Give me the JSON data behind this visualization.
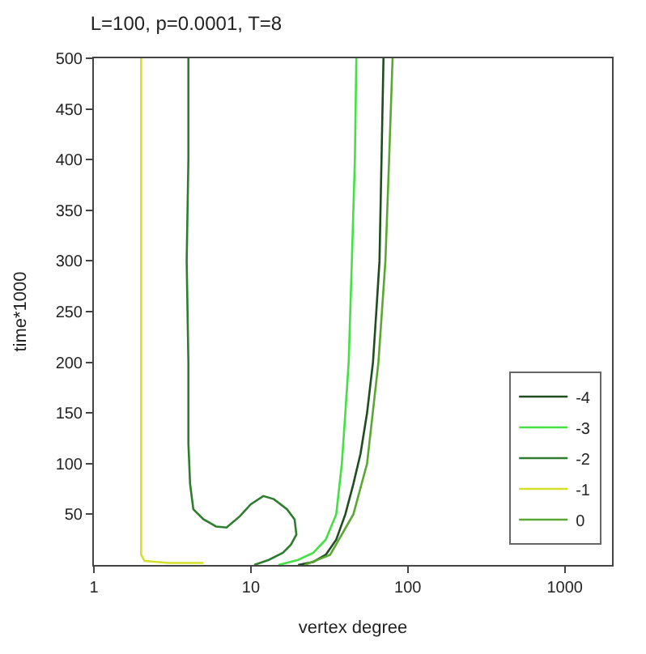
{
  "chart_data": {
    "type": "line",
    "title": "L=100, p=0.0001, T=8",
    "xlabel": "vertex degree",
    "ylabel": "time*1000",
    "log": "x",
    "xlim": [
      1,
      2000
    ],
    "xticks": [
      1,
      10,
      100,
      1000
    ],
    "ylim": [
      0,
      500
    ],
    "yticks": [
      50,
      100,
      150,
      200,
      250,
      300,
      350,
      400,
      450,
      500
    ],
    "legend": "bottom right",
    "marker": "none",
    "line_style": "solid",
    "series": [
      {
        "name": "-4",
        "color": "#1f4d1f",
        "x": [
          20,
          25,
          30,
          35,
          40,
          45,
          50,
          55,
          60,
          63,
          66,
          68,
          70
        ],
        "values": [
          0,
          3,
          10,
          25,
          50,
          80,
          110,
          150,
          200,
          250,
          300,
          400,
          500
        ]
      },
      {
        "name": "-3",
        "color": "#44e044",
        "x": [
          15,
          20,
          25,
          30,
          35,
          38,
          40,
          42,
          44,
          46,
          47
        ],
        "values": [
          0,
          5,
          12,
          25,
          50,
          100,
          150,
          200,
          300,
          400,
          500
        ]
      },
      {
        "name": "-2",
        "color": "#2e7d2e",
        "x": [
          10.5,
          13,
          16,
          18,
          19.5,
          19,
          17,
          14,
          12,
          10,
          8.5,
          7,
          6,
          5,
          4.3,
          4.1,
          4,
          4,
          3.9,
          4,
          4
        ],
        "values": [
          0,
          5,
          12,
          20,
          30,
          45,
          55,
          65,
          68,
          60,
          48,
          37,
          38,
          45,
          55,
          80,
          120,
          200,
          300,
          400,
          500
        ]
      },
      {
        "name": "-1",
        "color": "#d4e02a",
        "x": [
          5,
          3,
          2.1,
          2,
          2,
          2,
          2,
          2
        ],
        "values": [
          2,
          2,
          4,
          10,
          50,
          200,
          350,
          500
        ]
      },
      {
        "name": "0",
        "color": "#5aa832",
        "x": [
          22,
          32,
          45,
          55,
          65,
          72,
          76,
          80
        ],
        "values": [
          0,
          10,
          50,
          100,
          200,
          300,
          400,
          500
        ]
      }
    ]
  }
}
